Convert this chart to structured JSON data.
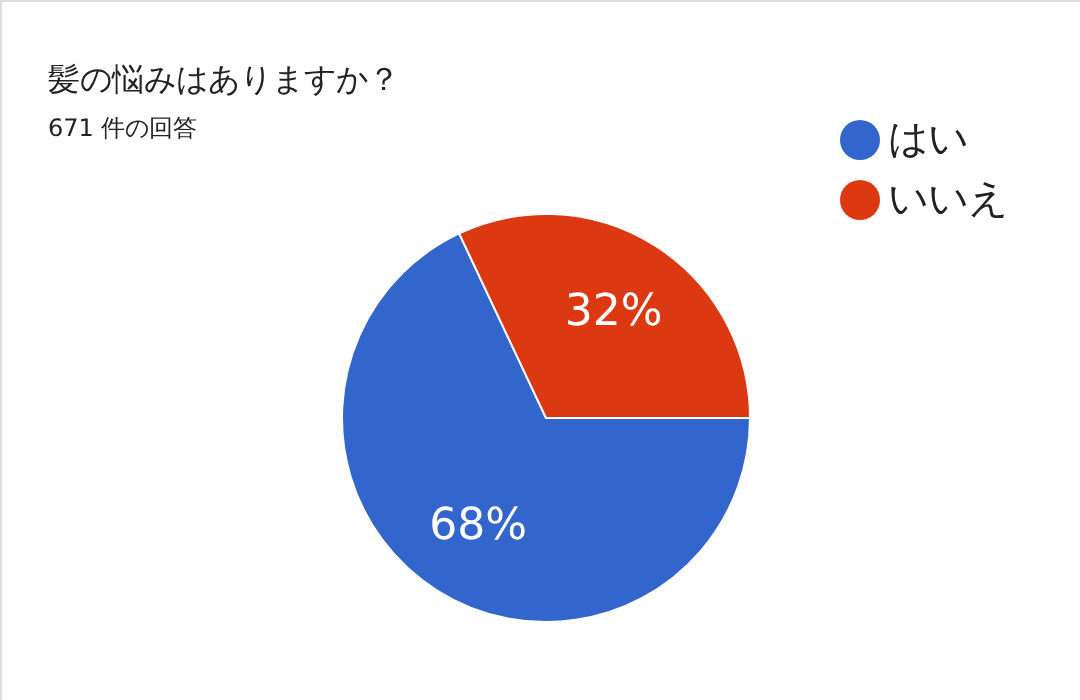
{
  "chart_data": {
    "type": "pie",
    "title": "髪の悩みはありますか？",
    "subtitle": "671 件の回答",
    "categories": [
      "はい",
      "いいえ"
    ],
    "values": [
      68,
      32
    ],
    "colors": [
      "#3366cc",
      "#dc3912"
    ],
    "value_labels": [
      "68%",
      "32%"
    ],
    "legend": "top right"
  }
}
